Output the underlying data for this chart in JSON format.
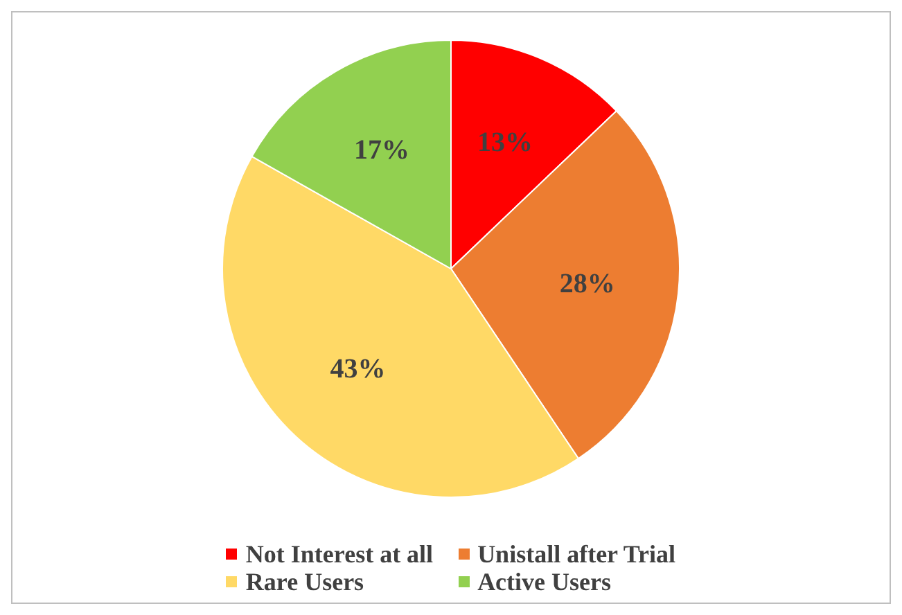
{
  "chart_data": {
    "type": "pie",
    "categories": [
      "Not Interest at all",
      "Unistall after Trial",
      "Rare Users",
      "Active Users"
    ],
    "values": [
      13,
      28,
      43,
      17
    ],
    "colors": [
      "#ff0000",
      "#ed7d31",
      "#ffd966",
      "#92d050"
    ],
    "value_labels": [
      "13%",
      "28%",
      "43%",
      "17%"
    ],
    "legend": "bottom"
  }
}
